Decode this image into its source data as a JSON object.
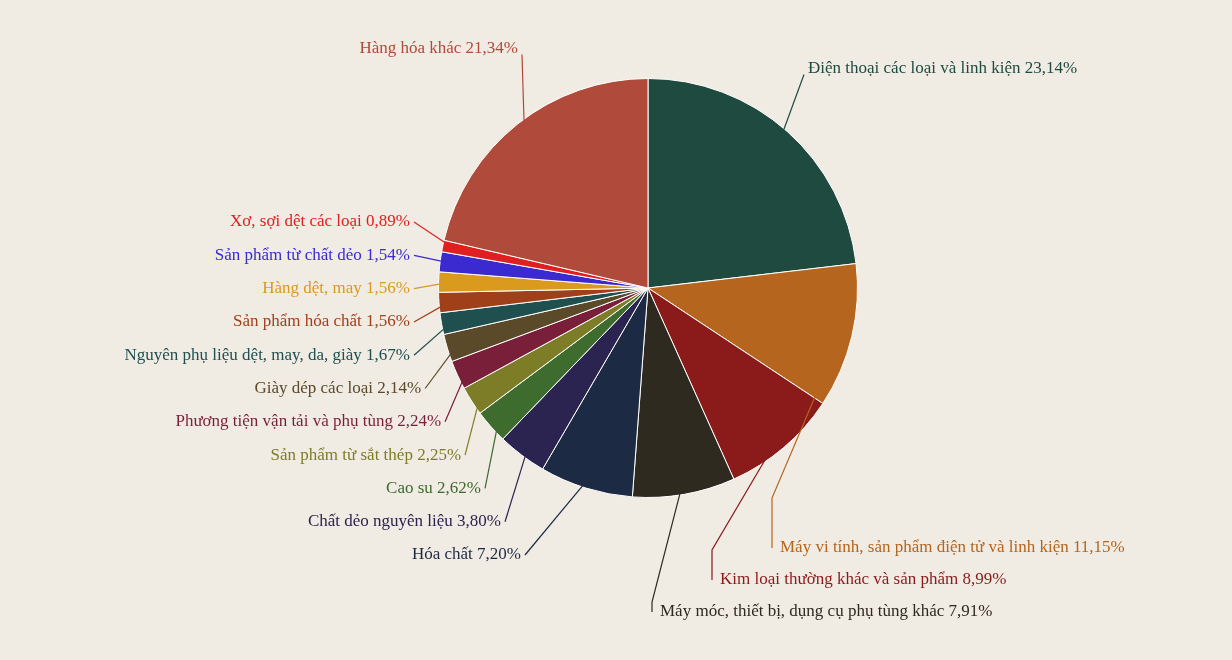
{
  "chart_data": {
    "type": "pie",
    "legend": false,
    "categories": [
      "Điện thoại các loại và linh kiện",
      "Máy vi tính, sản phẩm điện tử và linh kiện",
      "Kim loại thường khác và sản phẩm",
      "Máy móc, thiết bị, dụng cụ phụ tùng khác",
      "Hóa chất",
      "Chất dẻo nguyên liệu",
      "Cao su",
      "Sản phẩm từ sắt thép",
      "Phương tiện vận tải và phụ tùng",
      "Giày dép các loại",
      "Nguyên phụ liệu dệt, may, da, giày",
      "Sản phẩm hóa chất",
      "Hàng dệt, may",
      "Sản phẩm từ chất dẻo",
      "Xơ, sợi dệt các loại",
      "Hàng hóa khác"
    ],
    "values": [
      23.14,
      11.15,
      8.99,
      7.91,
      7.2,
      3.8,
      2.62,
      2.25,
      2.24,
      2.14,
      1.67,
      1.56,
      1.56,
      1.54,
      0.89,
      21.34
    ],
    "value_labels": [
      "23,14%",
      "11,15%",
      "8,99%",
      "7,91%",
      "7,20%",
      "3,80%",
      "2,62%",
      "2,25%",
      "2,24%",
      "2,14%",
      "1,67%",
      "1,56%",
      "1,56%",
      "1,54%",
      "0,89%",
      "21,34%"
    ],
    "colors": [
      "#1f4a40",
      "#b5651d",
      "#8b1a1a",
      "#2e2a1f",
      "#1c2a44",
      "#2b2350",
      "#3e6b2e",
      "#7d7d28",
      "#7a1f3a",
      "#5a4a2a",
      "#1f4f4f",
      "#a0401a",
      "#d99a1e",
      "#3a2ad0",
      "#e02020",
      "#b04a3a"
    ]
  }
}
